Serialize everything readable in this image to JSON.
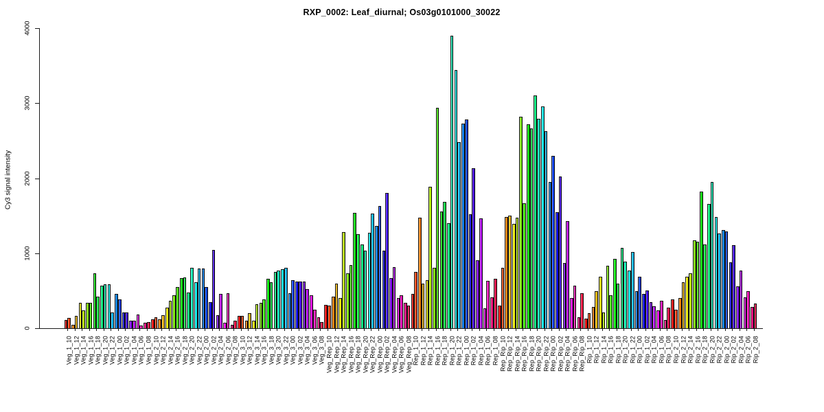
{
  "title": "RXP_0002: Leaf_diurnal; Os03g0101000_30022",
  "chart_data": {
    "type": "bar",
    "title": "RXP_0002: Leaf_diurnal; Os03g0101000_30022",
    "xlabel": "",
    "ylabel": "Cy3 signal intensity",
    "ylim": [
      0,
      4000
    ],
    "yticks": [
      "0",
      "1000",
      "2000",
      "3000",
      "4000"
    ],
    "grid": false,
    "legend": "none",
    "bar_style": "two replicate bars per time point, outlined, R rainbow palette cycling across each 12-sample group",
    "palette": {
      "hue_start_deg": 0,
      "hue_step_per_category_deg": 30,
      "hue_step_within_pair_deg": 15,
      "saturation": "100%",
      "lightness": "50%"
    },
    "groups": [
      "Veg_1",
      "Veg_2",
      "Veg_3",
      "Veg_Rep",
      "Rep_1",
      "Rep_Rip",
      "Rip_1",
      "Rip_2"
    ],
    "times": [
      "10",
      "12",
      "14",
      "16",
      "18",
      "20",
      "22",
      "00",
      "02",
      "04",
      "06",
      "08"
    ],
    "categories": [
      "Veg_1_10",
      "Veg_1_12",
      "Veg_1_14",
      "Veg_1_16",
      "Veg_1_18",
      "Veg_1_20",
      "Veg_1_22",
      "Veg_1_00",
      "Veg_1_02",
      "Veg_1_04",
      "Veg_1_06",
      "Veg_1_08",
      "Veg_2_10",
      "Veg_2_12",
      "Veg_2_14",
      "Veg_2_16",
      "Veg_2_18",
      "Veg_2_20",
      "Veg_2_22",
      "Veg_2_00",
      "Veg_2_02",
      "Veg_2_04",
      "Veg_2_06",
      "Veg_2_08",
      "Veg_3_10",
      "Veg_3_12",
      "Veg_3_14",
      "Veg_3_16",
      "Veg_3_18",
      "Veg_3_20",
      "Veg_3_22",
      "Veg_3_00",
      "Veg_3_02",
      "Veg_3_04",
      "Veg_3_06",
      "Veg_3_08",
      "Veg_Rep_10",
      "Veg_Rep_12",
      "Veg_Rep_14",
      "Veg_Rep_16",
      "Veg_Rep_18",
      "Veg_Rep_20",
      "Veg_Rep_22",
      "Veg_Rep_00",
      "Veg_Rep_02",
      "Veg_Rep_04",
      "Veg_Rep_06",
      "Veg_Rep_08",
      "Rep_1_10",
      "Rep_1_12",
      "Rep_1_14",
      "Rep_1_16",
      "Rep_1_18",
      "Rep_1_20",
      "Rep_1_22",
      "Rep_1_00",
      "Rep_1_02",
      "Rep_1_04",
      "Rep_1_06",
      "Rep_1_08",
      "Rep_Rip_10",
      "Rep_Rip_12",
      "Rep_Rip_14",
      "Rep_Rip_16",
      "Rep_Rip_18",
      "Rep_Rip_20",
      "Rep_Rip_22",
      "Rep_Rip_00",
      "Rep_Rip_02",
      "Rep_Rip_04",
      "Rep_Rip_06",
      "Rep_Rip_08",
      "Rip_1_10",
      "Rip_1_12",
      "Rip_1_14",
      "Rip_1_16",
      "Rip_1_18",
      "Rip_1_20",
      "Rip_1_22",
      "Rip_1_00",
      "Rip_1_02",
      "Rip_1_04",
      "Rip_1_06",
      "Rip_1_08",
      "Rip_2_10",
      "Rip_2_12",
      "Rip_2_14",
      "Rip_2_16",
      "Rip_2_18",
      "Rip_2_20",
      "Rip_2_22",
      "Rip_2_00",
      "Rip_2_02",
      "Rip_2_04",
      "Rip_2_06",
      "Rip_2_08"
    ],
    "values": [
      [
        110,
        135
      ],
      [
        45,
        165
      ],
      [
        340,
        240
      ],
      [
        335,
        335
      ],
      [
        735,
        420
      ],
      [
        565,
        590
      ],
      [
        590,
        210
      ],
      [
        455,
        385
      ],
      [
        215,
        215
      ],
      [
        100,
        100
      ],
      [
        180,
        40
      ],
      [
        70,
        80
      ],
      [
        115,
        145
      ],
      [
        120,
        170
      ],
      [
        275,
        365
      ],
      [
        440,
        550
      ],
      [
        670,
        680
      ],
      [
        480,
        810
      ],
      [
        610,
        800
      ],
      [
        800,
        550
      ],
      [
        345,
        1040
      ],
      [
        170,
        460
      ],
      [
        70,
        470
      ],
      [
        45,
        100
      ],
      [
        165,
        165
      ],
      [
        105,
        205
      ],
      [
        100,
        320
      ],
      [
        340,
        380
      ],
      [
        660,
        610
      ],
      [
        750,
        770
      ],
      [
        790,
        805
      ],
      [
        470,
        640
      ],
      [
        625,
        625
      ],
      [
        620,
        520
      ],
      [
        440,
        245
      ],
      [
        150,
        85
      ],
      [
        315,
        300
      ],
      [
        425,
        595
      ],
      [
        405,
        1280
      ],
      [
        730,
        840
      ],
      [
        1540,
        1250
      ],
      [
        1120,
        1030
      ],
      [
        1270,
        1525
      ],
      [
        1365,
        1625
      ],
      [
        1030,
        1800
      ],
      [
        665,
        815
      ],
      [
        405,
        435
      ],
      [
        340,
        305
      ],
      [
        460,
        750
      ],
      [
        1470,
        595
      ],
      [
        645,
        1890
      ],
      [
        810,
        2940
      ],
      [
        1560,
        1680
      ],
      [
        1400,
        3900
      ],
      [
        3440,
        2480
      ],
      [
        2730,
        2780
      ],
      [
        1515,
        2130
      ],
      [
        910,
        1460
      ],
      [
        270,
        630
      ],
      [
        410,
        655
      ],
      [
        305,
        810
      ],
      [
        1480,
        1505
      ],
      [
        1390,
        1475
      ],
      [
        2820,
        1670
      ],
      [
        2720,
        2660
      ],
      [
        3100,
        2790
      ],
      [
        2960,
        2630
      ],
      [
        1950,
        2300
      ],
      [
        1545,
        2020
      ],
      [
        870,
        1430
      ],
      [
        405,
        570
      ],
      [
        150,
        470
      ],
      [
        130,
        200
      ],
      [
        280,
        495
      ],
      [
        690,
        215
      ],
      [
        830,
        435
      ],
      [
        920,
        595
      ],
      [
        1075,
        890
      ],
      [
        765,
        1020
      ],
      [
        495,
        690
      ],
      [
        460,
        505
      ],
      [
        350,
        290
      ],
      [
        235,
        365
      ],
      [
        110,
        275
      ],
      [
        380,
        245
      ],
      [
        405,
        610
      ],
      [
        690,
        730
      ],
      [
        1175,
        1150
      ],
      [
        1820,
        1115
      ],
      [
        1655,
        1950
      ],
      [
        1485,
        1265
      ],
      [
        1310,
        1290
      ],
      [
        880,
        1110
      ],
      [
        560,
        770
      ],
      [
        410,
        490
      ],
      [
        285,
        325
      ]
    ]
  }
}
